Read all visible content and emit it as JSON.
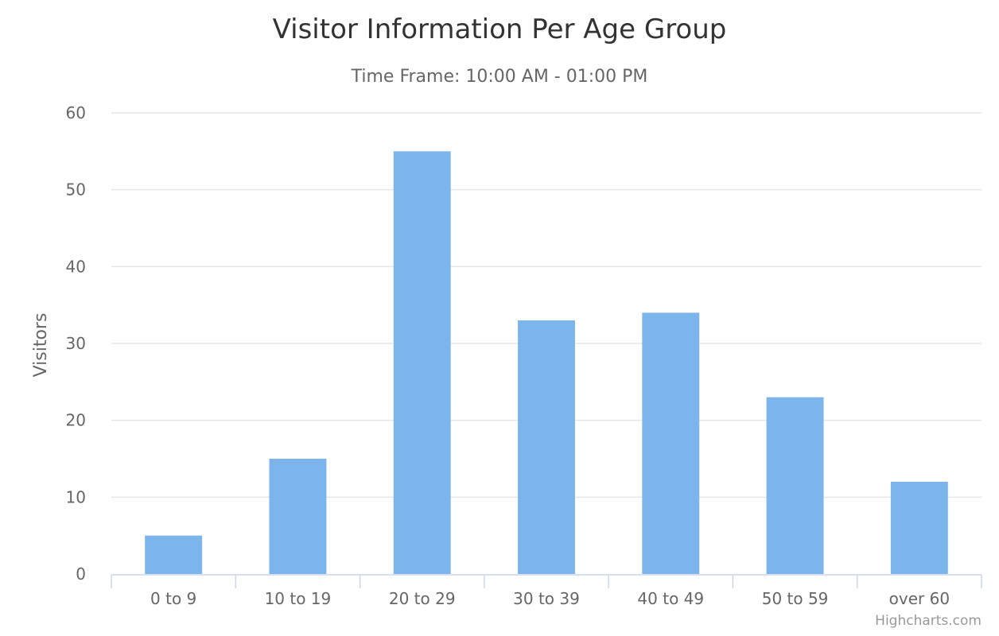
{
  "chart_data": {
    "type": "bar",
    "title": "Visitor Information Per Age Group",
    "subtitle": "Time Frame: 10:00 AM - 01:00 PM",
    "xlabel": "",
    "ylabel": "Visitors",
    "categories": [
      "0 to 9",
      "10 to 19",
      "20 to 29",
      "30 to 39",
      "40 to 49",
      "50 to 59",
      "over 60"
    ],
    "values": [
      5,
      15,
      55,
      33,
      34,
      23,
      12
    ],
    "ylim": [
      0,
      60
    ],
    "yticks": [
      0,
      10,
      20,
      30,
      40,
      50,
      60
    ],
    "grid": true,
    "legend": "none",
    "bar_color": "#7cb5ec",
    "credits": "Highcharts.com"
  }
}
